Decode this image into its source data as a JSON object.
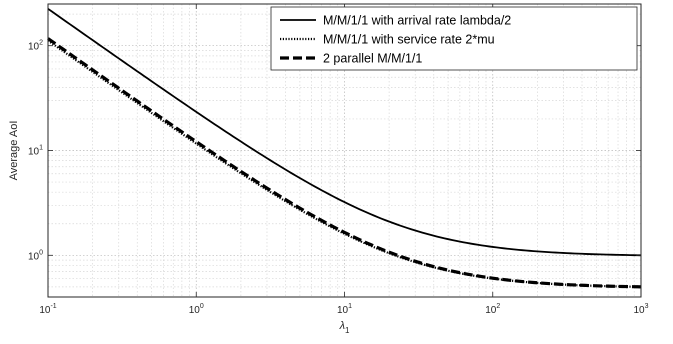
{
  "chart_data": {
    "type": "line",
    "title": "",
    "xlabel": "λ",
    "xlabel_subscript": "1",
    "ylabel": "Average AoI",
    "xscale": "log",
    "yscale": "log",
    "xlim": [
      0.1,
      1000
    ],
    "ylim": [
      0.4,
      250
    ],
    "x_ticks": [
      {
        "value": 0.1,
        "base": "10",
        "exp": "-1"
      },
      {
        "value": 1,
        "base": "10",
        "exp": "0"
      },
      {
        "value": 10,
        "base": "10",
        "exp": "1"
      },
      {
        "value": 100,
        "base": "10",
        "exp": "2"
      },
      {
        "value": 1000,
        "base": "10",
        "exp": "3"
      }
    ],
    "y_ticks": [
      {
        "value": 1,
        "base": "10",
        "exp": "0"
      },
      {
        "value": 10,
        "base": "10",
        "exp": "1"
      },
      {
        "value": 100,
        "base": "10",
        "exp": "2"
      }
    ],
    "grid": true,
    "minor_grid": true,
    "legend_position": "top-right",
    "series": [
      {
        "name": "M/M/1/1 with arrival rate lambda/2",
        "style": "solid",
        "color": "#000000",
        "x": [
          0.1,
          1000
        ],
        "y": [
          225,
          1.0
        ]
      },
      {
        "name": "M/M/1/1 with service rate 2*mu",
        "style": "dotted",
        "color": "#000000",
        "x": [
          0.1,
          1000
        ],
        "y": [
          112,
          0.5
        ]
      },
      {
        "name": "2 parallel M/M/1/1",
        "style": "dashed",
        "color": "#000000",
        "x": [
          0.1,
          1000
        ],
        "y": [
          117,
          0.5
        ]
      }
    ]
  }
}
